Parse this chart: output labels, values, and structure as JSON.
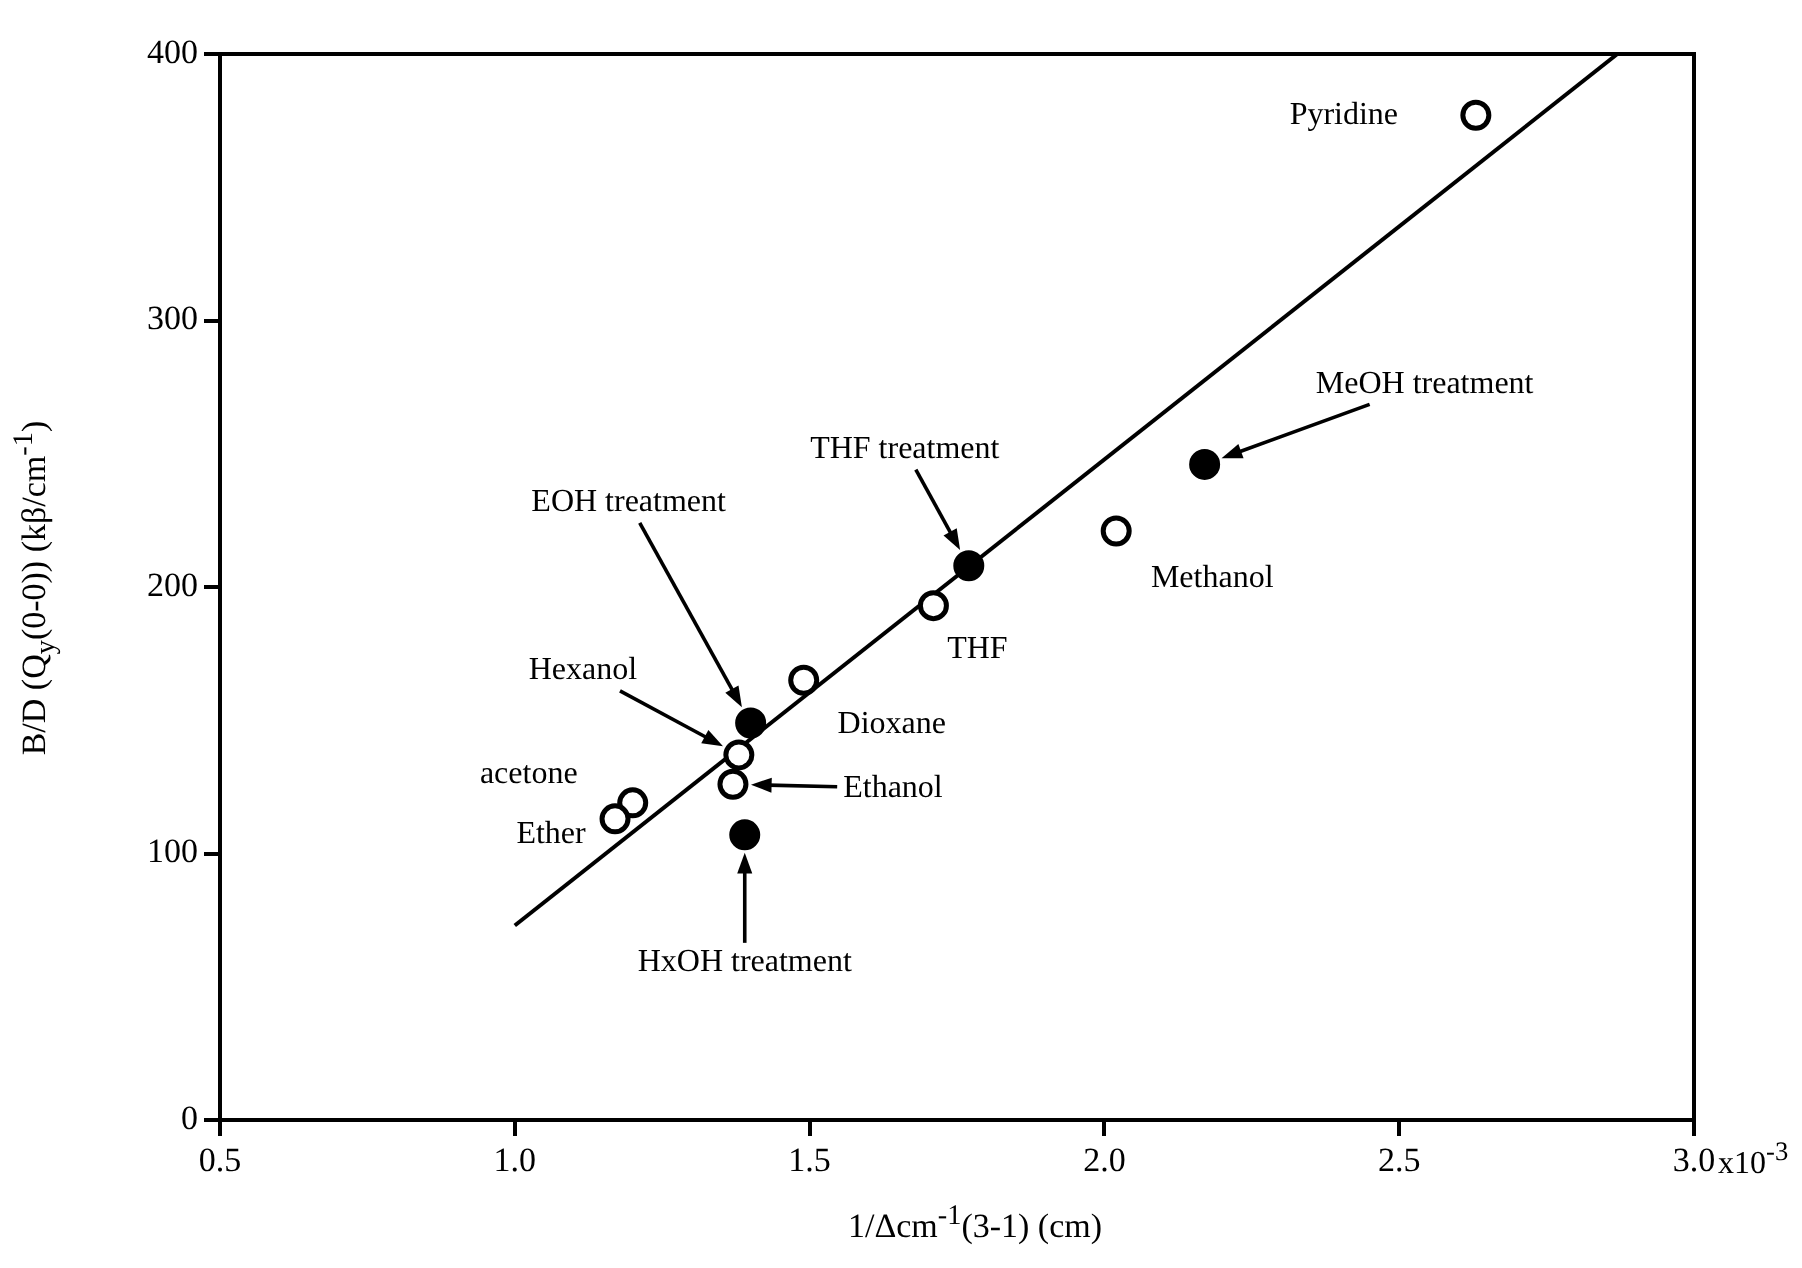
{
  "chart_data": {
    "type": "scatter",
    "xlabel": "1/Δcm$^{-1}$(3-1)    (cm)",
    "ylabel": "B/D (Q$_{y}$(0-0))  (kβ/cm$^{-1}$)",
    "series": [
      {
        "color": "#000000",
        "marker": "circle",
        "x": [
          2.63,
          2.02,
          1.71,
          1.49,
          1.37,
          1.38,
          1.2,
          1.17
        ],
        "values": [
          377,
          221,
          193,
          165,
          126,
          137,
          119,
          113
        ]
      },
      {
        "color": "#000000",
        "marker": "circle",
        "x": [
          1.4,
          1.77,
          2.17,
          1.39
        ],
        "values": [
          149,
          208,
          246,
          107
        ]
      },
      {
        "type": "line",
        "color": "#000000",
        "marker": "none",
        "x": [
          1.0,
          2.87
        ],
        "values": [
          73,
          400
        ]
      }
    ],
    "annotations": [
      {
        "text": "Pyridine",
        "x": 2.63,
        "y": 377
      },
      {
        "text": "Methanol",
        "x": 2.02,
        "y": 221
      },
      {
        "text": "THF",
        "x": 1.71,
        "y": 193
      },
      {
        "text": "Dioxane",
        "x": 1.49,
        "y": 165
      },
      "Ethanol",
      "Hexanol",
      {
        "text": "acetone",
        "x": 1.2,
        "y": 119
      },
      {
        "text": "Ether",
        "x": 1.17,
        "y": 113
      },
      "EOH treatment",
      "THF treatment",
      "MeOH treatment",
      "HxOH treatment",
      "x10$^{-3}$"
    ],
    "xlim": [
      0.5,
      3.0
    ],
    "xticks": [
      0.5,
      {
        "value": 1.0,
        "label": "1.0"
      },
      1.5,
      {
        "value": 2.0,
        "label": "2.0"
      },
      2.5,
      {
        "value": 3.0,
        "label": "3.0"
      }
    ],
    "ylim": [
      0,
      400
    ],
    "yticks": [
      0,
      100,
      200,
      300,
      400
    ],
    "grid": false,
    "legend": false
  }
}
